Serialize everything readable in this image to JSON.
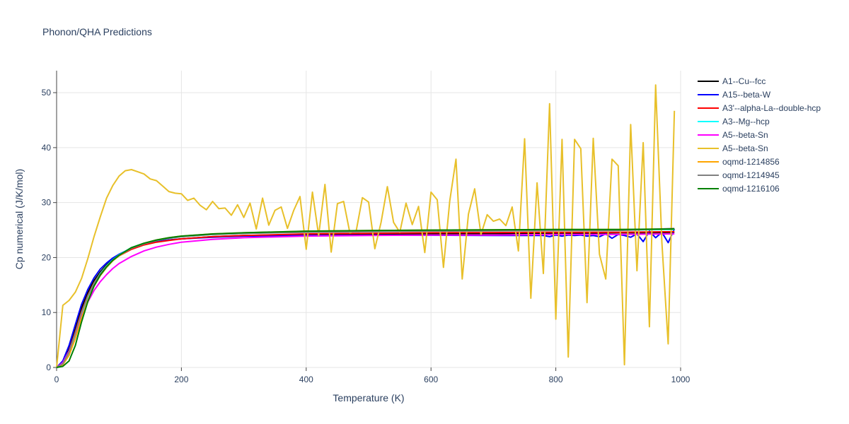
{
  "chart_data": {
    "type": "line",
    "title": "Phonon/QHA Predictions",
    "xlabel": "Temperature (K)",
    "ylabel": "Cp numerical (J/K/mol)",
    "xlim": [
      0,
      1000
    ],
    "ylim": [
      0,
      54
    ],
    "xticks": [
      0,
      200,
      400,
      600,
      800,
      1000
    ],
    "yticks": [
      0,
      10,
      20,
      30,
      40,
      50
    ],
    "grid": true,
    "legend_position": "right",
    "series": [
      {
        "name": "A1--Cu--fcc",
        "color": "#000000",
        "x": [
          0,
          10,
          20,
          30,
          40,
          50,
          60,
          70,
          80,
          90,
          100,
          120,
          140,
          160,
          180,
          200,
          250,
          300,
          400,
          500,
          600,
          700,
          800,
          850,
          900,
          950,
          990
        ],
        "y": [
          0,
          1.0,
          3.5,
          7.2,
          10.8,
          13.6,
          15.8,
          17.4,
          18.7,
          19.7,
          20.5,
          21.6,
          22.4,
          22.9,
          23.2,
          23.4,
          23.8,
          24.0,
          24.2,
          24.3,
          24.3,
          24.35,
          24.4,
          24.4,
          24.5,
          24.5,
          24.6
        ]
      },
      {
        "name": "A15--beta-W",
        "color": "#0000ff",
        "x": [
          0,
          10,
          20,
          30,
          40,
          50,
          60,
          70,
          80,
          90,
          100,
          120,
          140,
          160,
          180,
          200,
          250,
          300,
          400,
          500,
          600,
          700,
          780,
          790,
          800,
          810,
          820,
          830,
          840,
          850,
          860,
          870,
          880,
          890,
          900,
          910,
          920,
          930,
          940,
          950,
          960,
          970,
          980,
          990
        ],
        "y": [
          0,
          1.2,
          4.0,
          7.8,
          11.5,
          14.2,
          16.3,
          17.9,
          19.0,
          19.9,
          20.6,
          21.7,
          22.4,
          22.9,
          23.2,
          23.4,
          23.7,
          23.9,
          24.0,
          24.05,
          24.05,
          24.0,
          24.0,
          23.8,
          24.1,
          23.9,
          24.1,
          24.0,
          24.1,
          23.9,
          24.0,
          23.8,
          24.3,
          23.5,
          24.2,
          24.0,
          23.7,
          24.3,
          22.9,
          24.8,
          23.6,
          24.6,
          22.7,
          25.2
        ]
      },
      {
        "name": "A3'--alpha-La--double-hcp",
        "color": "#ff0000",
        "x": [
          0,
          10,
          20,
          30,
          40,
          50,
          60,
          70,
          80,
          90,
          100,
          120,
          140,
          160,
          180,
          200,
          250,
          300,
          400,
          500,
          600,
          700,
          800,
          900,
          990
        ],
        "y": [
          0,
          0.8,
          3.0,
          6.5,
          10.2,
          13.1,
          15.4,
          17.1,
          18.5,
          19.5,
          20.3,
          21.5,
          22.3,
          22.8,
          23.1,
          23.4,
          23.8,
          24.0,
          24.3,
          24.4,
          24.5,
          24.55,
          24.6,
          24.6,
          24.7
        ]
      },
      {
        "name": "A3--Mg--hcp",
        "color": "#00ffff",
        "x": [
          0,
          10,
          20,
          30,
          40,
          50,
          60,
          70,
          80,
          90,
          100,
          120,
          140,
          160,
          180,
          200,
          250,
          300,
          400,
          500,
          600,
          700,
          800,
          900,
          990
        ],
        "y": [
          0,
          0.6,
          2.6,
          6.0,
          9.8,
          12.9,
          15.3,
          17.1,
          18.5,
          19.6,
          20.5,
          21.8,
          22.6,
          23.1,
          23.5,
          23.8,
          24.2,
          24.4,
          24.7,
          24.8,
          24.9,
          24.95,
          25.0,
          25.0,
          25.1
        ]
      },
      {
        "name": "A5--beta-Sn",
        "color": "#ff00ff",
        "x": [
          0,
          10,
          20,
          30,
          40,
          50,
          60,
          70,
          80,
          90,
          100,
          120,
          140,
          160,
          180,
          200,
          250,
          300,
          400,
          500,
          600,
          700,
          800,
          900,
          990
        ],
        "y": [
          0,
          0.9,
          3.0,
          6.2,
          9.3,
          11.9,
          14.0,
          15.6,
          16.9,
          18.0,
          18.9,
          20.2,
          21.2,
          21.9,
          22.4,
          22.8,
          23.3,
          23.6,
          23.9,
          24.0,
          24.1,
          24.1,
          24.2,
          24.2,
          24.3
        ]
      },
      {
        "name": "A5--beta-Sn",
        "color": "#e8c02a",
        "x": [
          0,
          10,
          20,
          30,
          40,
          50,
          60,
          70,
          80,
          90,
          100,
          110,
          120,
          130,
          140,
          150,
          160,
          170,
          180,
          190,
          200,
          210,
          220,
          230,
          240,
          250,
          260,
          270,
          280,
          290,
          300,
          310,
          320,
          330,
          340,
          350,
          360,
          370,
          380,
          390,
          400,
          410,
          420,
          430,
          440,
          450,
          460,
          470,
          480,
          490,
          500,
          510,
          520,
          530,
          540,
          550,
          560,
          570,
          580,
          590,
          600,
          610,
          620,
          630,
          640,
          650,
          660,
          670,
          680,
          690,
          700,
          710,
          720,
          730,
          740,
          750,
          760,
          770,
          780,
          790,
          800,
          810,
          820,
          830,
          840,
          850,
          860,
          870,
          880,
          890,
          900,
          910,
          920,
          930,
          940,
          950,
          960,
          970,
          980,
          990
        ],
        "y": [
          0,
          11.3,
          12.2,
          13.7,
          16.2,
          19.8,
          23.8,
          27.4,
          30.8,
          33.1,
          34.8,
          35.8,
          36.0,
          35.6,
          35.2,
          34.3,
          34.0,
          33.0,
          32.0,
          31.7,
          31.6,
          30.4,
          30.8,
          29.5,
          28.7,
          30.2,
          28.9,
          29.0,
          27.7,
          29.6,
          27.3,
          29.9,
          25.2,
          30.8,
          25.9,
          28.6,
          29.2,
          25.3,
          28.6,
          31.1,
          21.5,
          31.9,
          24.0,
          33.3,
          21.0,
          29.8,
          30.2,
          24.5,
          24.8,
          30.9,
          30.1,
          21.6,
          26.4,
          32.9,
          26.4,
          24.6,
          29.9,
          26.0,
          29.3,
          20.9,
          31.9,
          30.5,
          18.2,
          30.3,
          37.9,
          16.1,
          27.9,
          32.5,
          24.2,
          27.8,
          26.6,
          27.0,
          25.8,
          29.2,
          21.2,
          41.6,
          12.6,
          33.6,
          17.1,
          48.0,
          8.8,
          41.5,
          1.9,
          41.5,
          39.8,
          11.8,
          41.7,
          20.6,
          16.1,
          37.9,
          36.7,
          0.5,
          44.2,
          17.6,
          40.9,
          7.4,
          51.4,
          22.8,
          4.3,
          46.7
        ]
      },
      {
        "name": "oqmd-1214856",
        "color": "#ffa500",
        "x": [
          0,
          10,
          20,
          30,
          40,
          50,
          60,
          70,
          80,
          90,
          100,
          120,
          140,
          160,
          180,
          200,
          250,
          300,
          400,
          500,
          600,
          700,
          800,
          900,
          990
        ],
        "y": [
          0,
          0.5,
          2.2,
          5.3,
          9.0,
          12.2,
          14.8,
          16.7,
          18.2,
          19.4,
          20.3,
          21.7,
          22.6,
          23.2,
          23.6,
          23.9,
          24.3,
          24.5,
          24.8,
          24.9,
          25.0,
          25.05,
          25.1,
          25.1,
          25.2
        ]
      },
      {
        "name": "oqmd-1214945",
        "color": "#808080",
        "x": [
          0,
          10,
          20,
          30,
          40,
          50,
          60,
          70,
          80,
          90,
          100,
          120,
          140,
          160,
          180,
          200,
          250,
          300,
          400,
          500,
          600,
          700,
          800,
          900,
          990
        ],
        "y": [
          0,
          0.7,
          2.8,
          6.3,
          10.0,
          13.0,
          15.3,
          17.0,
          18.4,
          19.5,
          20.4,
          21.7,
          22.5,
          23.1,
          23.5,
          23.8,
          24.2,
          24.4,
          24.6,
          24.7,
          24.8,
          24.85,
          24.9,
          24.9,
          25.3
        ]
      },
      {
        "name": "oqmd-1216106",
        "color": "#008000",
        "x": [
          0,
          10,
          20,
          30,
          40,
          50,
          60,
          70,
          80,
          90,
          100,
          120,
          140,
          160,
          180,
          200,
          250,
          300,
          400,
          500,
          600,
          700,
          800,
          900,
          990
        ],
        "y": [
          0,
          0.2,
          1.2,
          4.0,
          8.3,
          12.0,
          14.8,
          16.8,
          18.3,
          19.5,
          20.4,
          21.8,
          22.6,
          23.2,
          23.6,
          23.9,
          24.3,
          24.5,
          24.8,
          24.9,
          25.0,
          25.05,
          25.1,
          25.1,
          25.2
        ]
      }
    ]
  }
}
